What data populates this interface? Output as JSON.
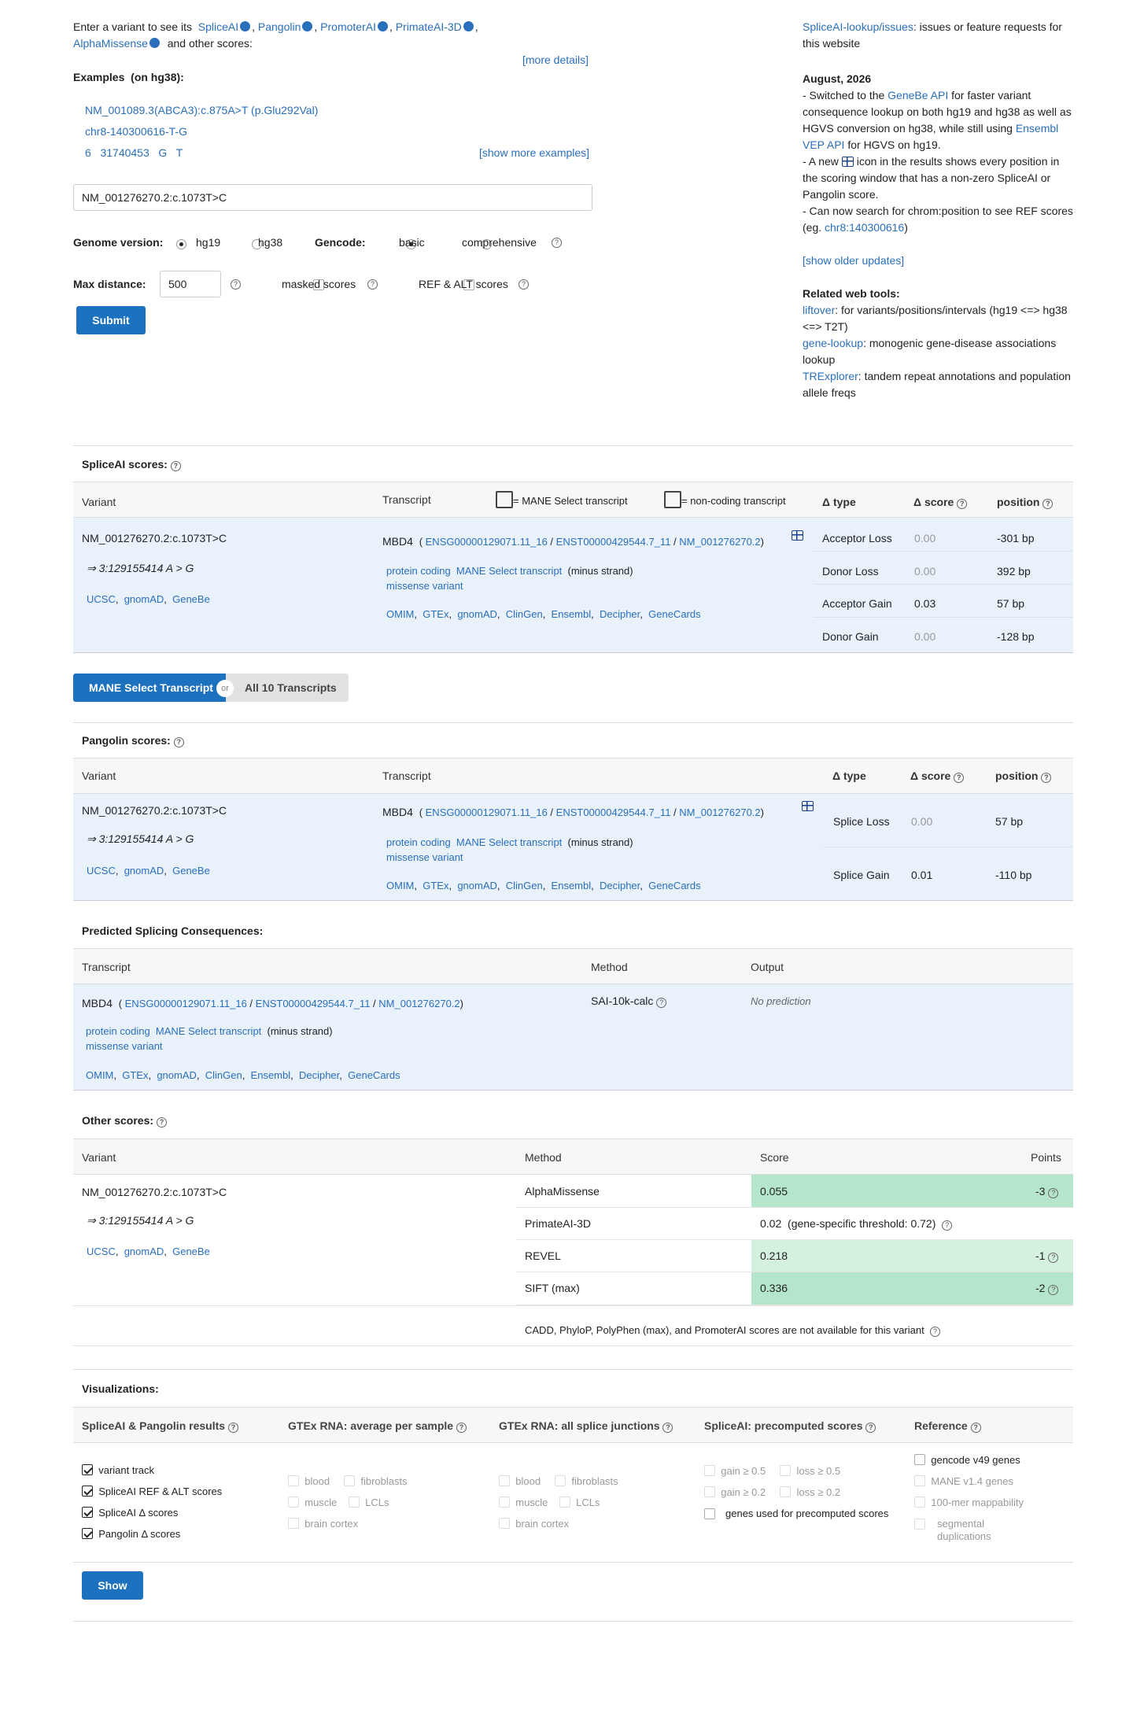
{
  "intro": {
    "prefix": "Enter a variant to see its",
    "tools": [
      "SpliceAI",
      "Pangolin",
      "PromoterAI",
      "PrimateAI-3D",
      "AlphaMissense"
    ],
    "suffix": "and other scores:",
    "more_details": "[more details]"
  },
  "examples": {
    "title": "Examples",
    "subtitle": "(on hg38):",
    "items": [
      "NM_001089.3(ABCA3):c.875A>T (p.Glu292Val)",
      "chr8-140300616-T-G",
      "6   31740453   G   T"
    ],
    "show_more": "[show more examples]"
  },
  "search": {
    "value": "NM_001276270.2:c.1073T>C"
  },
  "options": {
    "genome_label": "Genome version:",
    "hg19": "hg19",
    "hg38": "hg38",
    "gencode_label": "Gencode:",
    "basic": "basic",
    "comprehensive": "comprehensive",
    "max_dist_label": "Max distance:",
    "max_dist_value": "500",
    "masked": "masked scores",
    "refalt": "REF & ALT scores",
    "submit": "Submit"
  },
  "sidebar": {
    "issues_link": "SpliceAI-lookup/issues",
    "issues_text": ": issues or feature requests for this website",
    "date": "August, 2026",
    "u1a": "- Switched to the ",
    "u1_link1": "GeneBe API",
    "u1b": " for faster variant consequence lookup on both hg19 and hg38 as well as HGVS conversion on hg38, while still using ",
    "u1_link2": "Ensembl VEP API",
    "u1c": " for HGVS on hg19.",
    "u2a": "- A new ",
    "u2b": " icon in the results shows every position in the scoring window that has a non-zero SpliceAI or Pangolin score.",
    "u3a": "- Can now search for chrom:position to see REF scores (eg. ",
    "u3_link": "chr8:140300616",
    "u3b": ")",
    "show_older": "[show older updates]",
    "related_title": "Related web tools:",
    "r1_link": "liftover",
    "r1_text": ": for variants/positions/intervals (hg19 <=> hg38 <=> T2T)",
    "r2_link": "gene-lookup",
    "r2_text": ": monogenic gene-disease associations lookup",
    "r3_link": "TRExplorer",
    "r3_text": ": tandem repeat annotations and population allele freqs"
  },
  "common": {
    "variant": "NM_001276270.2:c.1073T>C",
    "coord": "⇒ 3:129155414 A > G",
    "links": [
      "UCSC",
      "gnomAD",
      "GeneBe"
    ],
    "gene": "MBD4",
    "ids": [
      "ENSG00000129071.11_16",
      "ENST00000429544.7_11",
      "NM_001276270.2"
    ],
    "tags": [
      "protein coding",
      "MANE Select transcript"
    ],
    "strand": "(minus strand)",
    "consequence": "missense variant",
    "ext_links": [
      "OMIM",
      "GTEx",
      "gnomAD",
      "ClinGen",
      "Ensembl",
      "Decipher",
      "GeneCards"
    ]
  },
  "spliceai": {
    "title": "SpliceAI scores:",
    "h_variant": "Variant",
    "h_transcript": "Transcript",
    "legend_mane": "= MANE Select transcript",
    "legend_noncoding": "= non-coding transcript",
    "h_type": "Δ type",
    "h_score": "Δ score",
    "h_position": "position",
    "rows": [
      {
        "type": "Acceptor Loss",
        "score": "0.00",
        "pos": "-301 bp",
        "dim": true
      },
      {
        "type": "Donor Loss",
        "score": "0.00",
        "pos": "392 bp",
        "dim": true
      },
      {
        "type": "Acceptor Gain",
        "score": "0.03",
        "pos": "57 bp",
        "dim": false
      },
      {
        "type": "Donor Gain",
        "score": "0.00",
        "pos": "-128 bp",
        "dim": true
      }
    ]
  },
  "toggle": {
    "mane": "MANE Select Transcript",
    "or": "or",
    "all": "All 10 Transcripts"
  },
  "pangolin": {
    "title": "Pangolin scores:",
    "h_variant": "Variant",
    "h_transcript": "Transcript",
    "h_type": "Δ type",
    "h_score": "Δ score",
    "h_position": "position",
    "rows": [
      {
        "type": "Splice Loss",
        "score": "0.00",
        "pos": "57 bp",
        "dim": true
      },
      {
        "type": "Splice Gain",
        "score": "0.01",
        "pos": "-110 bp",
        "dim": false
      }
    ]
  },
  "consequences": {
    "title": "Predicted Splicing Consequences:",
    "h_transcript": "Transcript",
    "h_method": "Method",
    "h_output": "Output",
    "method": "SAI-10k-calc",
    "output": "No prediction"
  },
  "other": {
    "title": "Other scores:",
    "h_variant": "Variant",
    "h_method": "Method",
    "h_score": "Score",
    "h_points": "Points",
    "rows": [
      {
        "method": "AlphaMissense",
        "score": "0.055",
        "points": "-3"
      },
      {
        "method": "PrimateAI-3D",
        "score": "0.02",
        "extra": "(gene-specific threshold: 0.72)",
        "points": ""
      },
      {
        "method": "REVEL",
        "score": "0.218",
        "points": "-1"
      },
      {
        "method": "SIFT (max)",
        "score": "0.336",
        "points": "-2"
      }
    ],
    "note": "CADD,  PhyloP,  PolyPhen (max),  and PromoterAI scores are not available for this variant"
  },
  "viz": {
    "title": "Visualizations:",
    "cols": [
      "SpliceAI & Pangolin results",
      "GTEx RNA: average per sample",
      "GTEx RNA: all splice junctions",
      "SpliceAI: precomputed scores",
      "Reference"
    ],
    "results": [
      "variant track",
      "SpliceAI REF & ALT scores",
      "SpliceAI Δ  scores",
      "Pangolin Δ  scores"
    ],
    "gtex": [
      "blood",
      "fibroblasts",
      "muscle",
      "LCLs",
      "brain cortex"
    ],
    "pre": [
      "gain ≥ 0.5",
      "loss ≥ 0.5",
      "gain ≥ 0.2",
      "loss ≥ 0.2",
      "genes used for precomputed scores"
    ],
    "ref": [
      "gencode v49 genes",
      "MANE v1.4 genes",
      "100-mer mappability",
      "segmental duplications"
    ],
    "show": "Show"
  }
}
